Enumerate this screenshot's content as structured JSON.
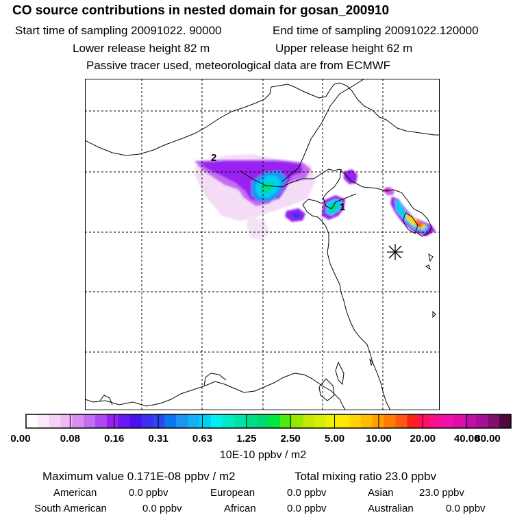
{
  "header": {
    "title": "CO  source contributions in nested domain for gosan_200910",
    "start_time": "Start time of sampling 20091022. 90000",
    "end_time": "End time of sampling 20091022.120000",
    "lower_height": "Lower release height   82 m",
    "upper_height": "Upper release height   62 m",
    "note": "Passive tracer used, meteorological data are from ECMWF"
  },
  "chart_data": {
    "type": "heatmap",
    "title": "CO  source contributions in nested domain for gosan_200910",
    "map_labels": [
      "2",
      "1"
    ],
    "colorbar": {
      "unit": "10E-10 ppbv / m2",
      "ticks": [
        "0.00",
        "0.08",
        "0.16",
        "0.31",
        "0.63",
        "1.25",
        "2.50",
        "5.00",
        "10.00",
        "20.00",
        "40.00",
        "80.00"
      ],
      "colors": [
        "#ffffff",
        "#fce8fc",
        "#f5d0f7",
        "#efb8f2",
        "#d88ef0",
        "#c46cf2",
        "#ac48f4",
        "#9a20f0",
        "#6818f0",
        "#4a10ee",
        "#3c30f0",
        "#2848f0",
        "#0c78f0",
        "#1a96f2",
        "#12b2f2",
        "#00d0f2",
        "#00f0f0",
        "#00eac8",
        "#00e2a8",
        "#00dc88",
        "#00d870",
        "#00e840",
        "#50ea10",
        "#9ae800",
        "#c4e800",
        "#dcee00",
        "#eef200",
        "#ffe800",
        "#ffd400",
        "#ffbc00",
        "#ffa000",
        "#ff7c00",
        "#ff5810",
        "#ff2020",
        "#ff1060",
        "#f81090",
        "#f010a8",
        "#dc10a8",
        "#c010a8",
        "#a41098",
        "#801070",
        "#500840"
      ]
    },
    "max_value": "Maximum value  0.171E-08 ppbv / m2",
    "total_mixing_ratio": "Total mixing ratio       23.0 ppbv",
    "regions": [
      {
        "name": "American",
        "value": "0.0 ppbv"
      },
      {
        "name": "European",
        "value": "0.0 ppbv"
      },
      {
        "name": "Asian",
        "value": "23.0 ppbv"
      },
      {
        "name": "South American",
        "value": "0.0 ppbv"
      },
      {
        "name": "African",
        "value": "0.0 ppbv"
      },
      {
        "name": "Australian",
        "value": "0.0 ppbv"
      }
    ]
  }
}
